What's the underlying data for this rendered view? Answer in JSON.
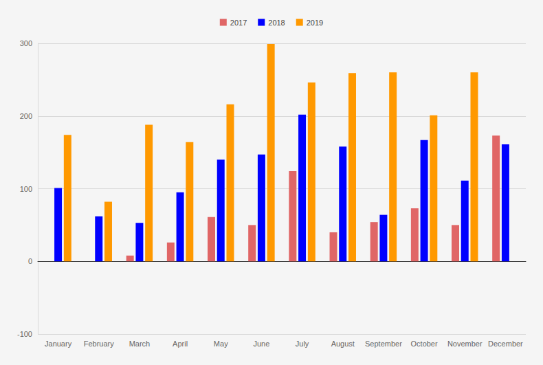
{
  "chart_data": {
    "type": "bar",
    "categories": [
      "January",
      "February",
      "March",
      "April",
      "May",
      "June",
      "July",
      "August",
      "September",
      "October",
      "November",
      "December"
    ],
    "series": [
      {
        "name": "2017",
        "color": "#e06666",
        "values": [
          null,
          null,
          8,
          26,
          61,
          50,
          124,
          40,
          54,
          73,
          50,
          173
        ]
      },
      {
        "name": "2018",
        "color": "#0000ff",
        "values": [
          101,
          62,
          53,
          95,
          140,
          147,
          202,
          158,
          64,
          167,
          111,
          161
        ]
      },
      {
        "name": "2019",
        "color": "#ff9900",
        "values": [
          174,
          82,
          188,
          164,
          216,
          299,
          246,
          259,
          260,
          201,
          260,
          null
        ]
      }
    ],
    "ylim": [
      -100,
      300
    ],
    "yticks": [
      -100,
      0,
      100,
      200,
      300
    ],
    "grid": true,
    "legend": "top"
  }
}
